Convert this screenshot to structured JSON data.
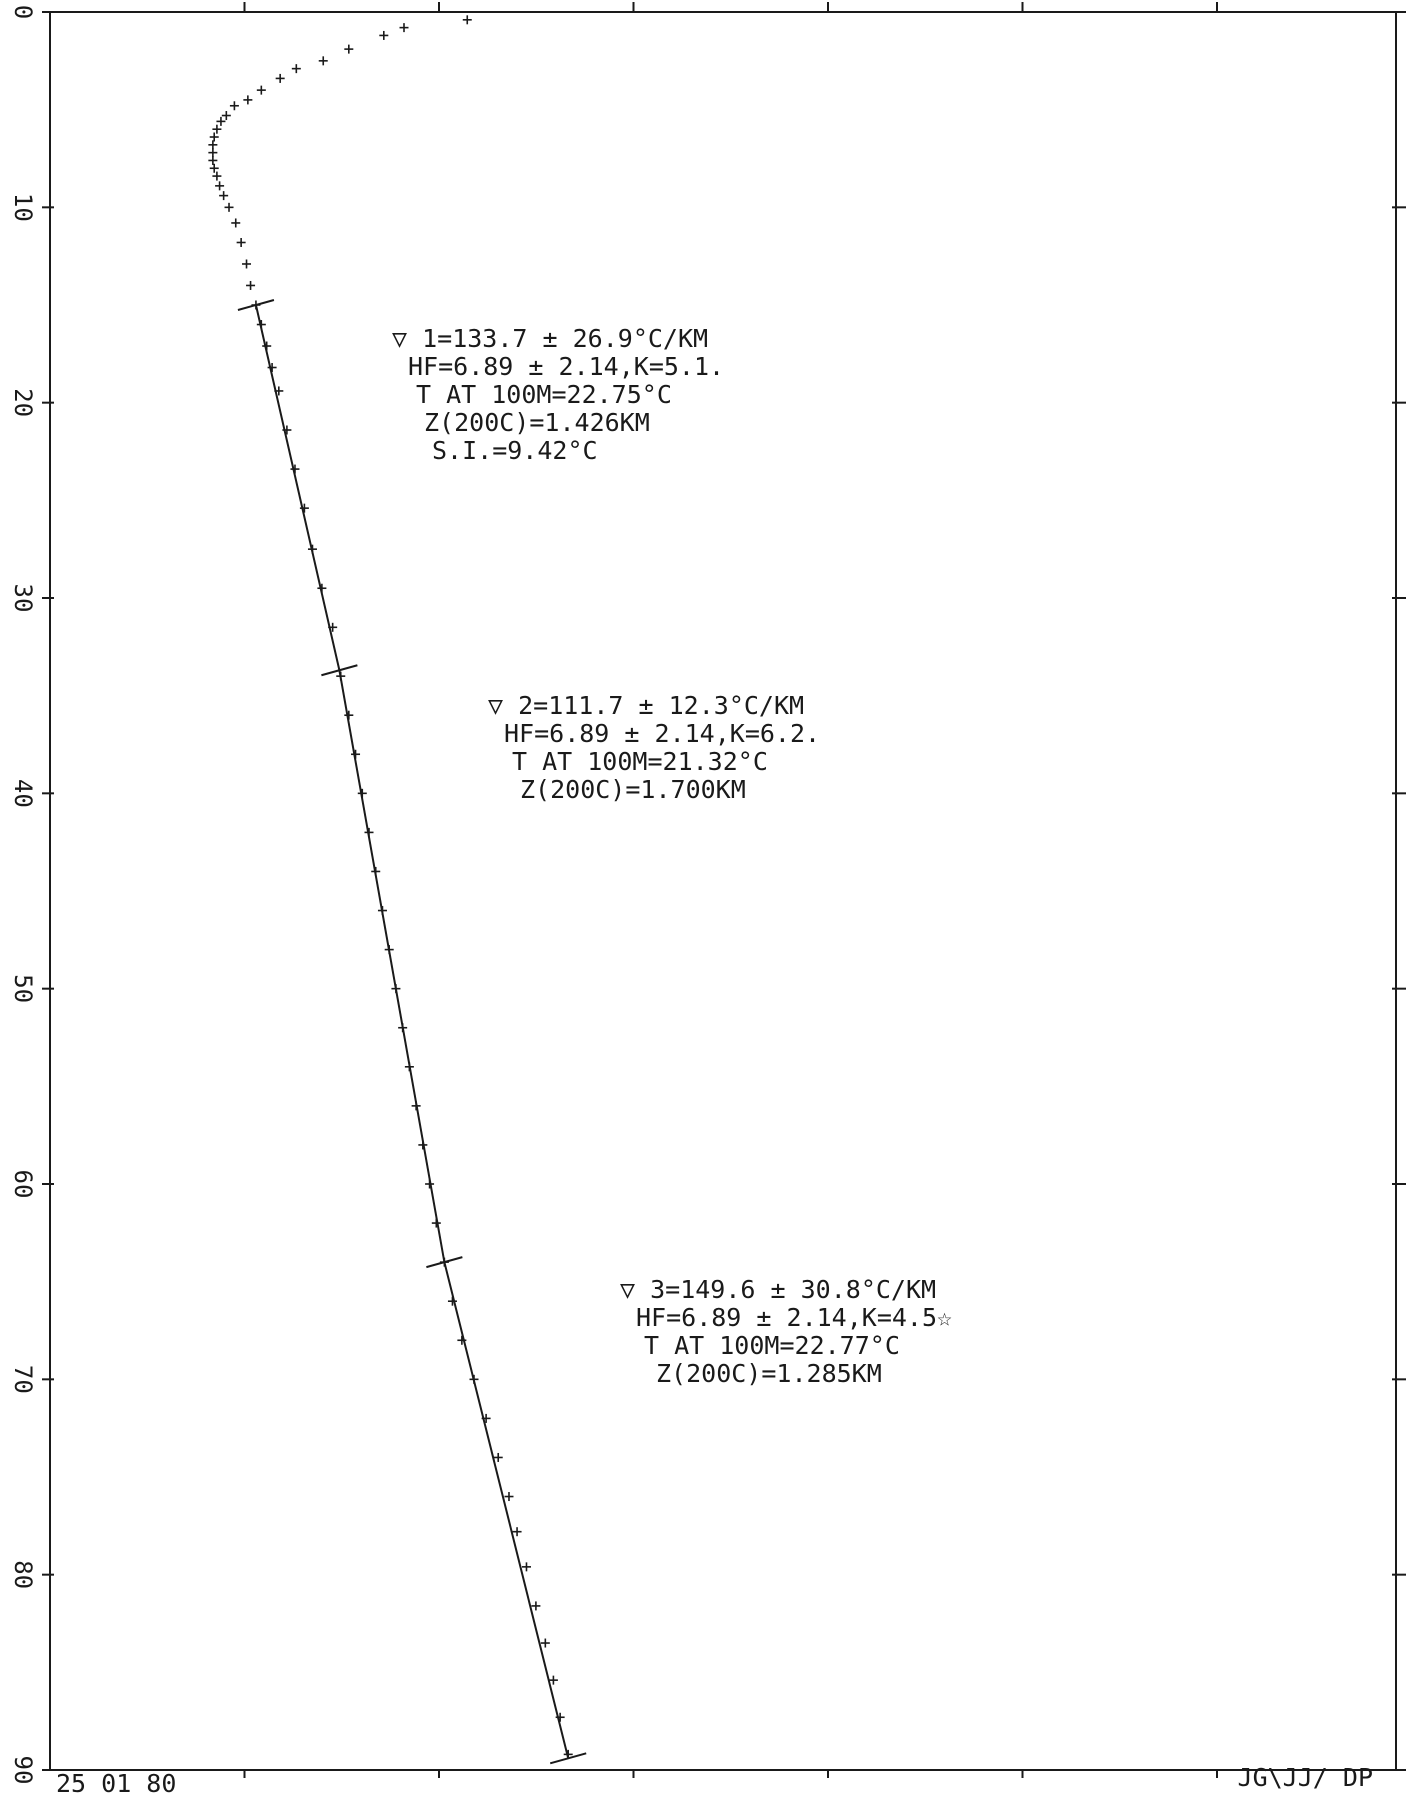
{
  "chart_data": {
    "type": "scatter",
    "title": "",
    "xlabel": "",
    "ylabel": "",
    "ylim": [
      0,
      90
    ],
    "y_ticks": [
      "0",
      "10",
      "20",
      "30",
      "40",
      "50",
      "60",
      "70",
      "80",
      "90"
    ],
    "ink_color": "#1a1a1a",
    "series": [
      {
        "points": [
          {
            "x": 31.0,
            "y": 0.4
          },
          {
            "x": 26.3,
            "y": 0.8
          },
          {
            "x": 24.8,
            "y": 1.2
          },
          {
            "x": 22.2,
            "y": 1.9
          },
          {
            "x": 20.3,
            "y": 2.5
          },
          {
            "x": 18.3,
            "y": 2.9
          },
          {
            "x": 17.1,
            "y": 3.4
          },
          {
            "x": 15.7,
            "y": 4.0
          },
          {
            "x": 14.7,
            "y": 4.5
          },
          {
            "x": 13.7,
            "y": 4.8
          },
          {
            "x": 13.1,
            "y": 5.3
          },
          {
            "x": 12.7,
            "y": 5.6
          },
          {
            "x": 12.4,
            "y": 6.0
          },
          {
            "x": 12.2,
            "y": 6.4
          },
          {
            "x": 12.1,
            "y": 6.8
          },
          {
            "x": 12.1,
            "y": 7.2
          },
          {
            "x": 12.1,
            "y": 7.6
          },
          {
            "x": 12.2,
            "y": 8.0
          },
          {
            "x": 12.4,
            "y": 8.4
          },
          {
            "x": 12.6,
            "y": 8.9
          },
          {
            "x": 12.9,
            "y": 9.4
          },
          {
            "x": 13.3,
            "y": 10.0
          },
          {
            "x": 13.8,
            "y": 10.8
          },
          {
            "x": 14.2,
            "y": 11.8
          },
          {
            "x": 14.6,
            "y": 12.9
          },
          {
            "x": 14.9,
            "y": 14.0
          },
          {
            "x": 15.3,
            "y": 15.0
          },
          {
            "x": 15.7,
            "y": 16.0
          },
          {
            "x": 16.1,
            "y": 17.1
          },
          {
            "x": 16.5,
            "y": 18.2
          },
          {
            "x": 17.0,
            "y": 19.4
          },
          {
            "x": 17.6,
            "y": 21.4
          },
          {
            "x": 18.2,
            "y": 23.4
          },
          {
            "x": 18.9,
            "y": 25.4
          },
          {
            "x": 19.5,
            "y": 27.5
          },
          {
            "x": 20.2,
            "y": 29.5
          },
          {
            "x": 21.0,
            "y": 31.5
          },
          {
            "x": 21.6,
            "y": 34.0
          },
          {
            "x": 22.2,
            "y": 36.0
          },
          {
            "x": 22.7,
            "y": 38.0
          },
          {
            "x": 23.2,
            "y": 40.0
          },
          {
            "x": 23.7,
            "y": 42.0
          },
          {
            "x": 24.2,
            "y": 44.0
          },
          {
            "x": 24.7,
            "y": 46.0
          },
          {
            "x": 25.2,
            "y": 48.0
          },
          {
            "x": 25.7,
            "y": 50.0
          },
          {
            "x": 26.2,
            "y": 52.0
          },
          {
            "x": 26.7,
            "y": 54.0
          },
          {
            "x": 27.2,
            "y": 56.0
          },
          {
            "x": 27.7,
            "y": 58.0
          },
          {
            "x": 28.2,
            "y": 60.0
          },
          {
            "x": 28.7,
            "y": 62.0
          },
          {
            "x": 29.3,
            "y": 64.0
          },
          {
            "x": 29.9,
            "y": 66.0
          },
          {
            "x": 30.6,
            "y": 68.0
          },
          {
            "x": 31.5,
            "y": 70.0
          },
          {
            "x": 32.4,
            "y": 72.0
          },
          {
            "x": 33.3,
            "y": 74.0
          },
          {
            "x": 34.1,
            "y": 76.0
          },
          {
            "x": 34.7,
            "y": 77.8
          },
          {
            "x": 35.4,
            "y": 79.6
          },
          {
            "x": 36.1,
            "y": 81.6
          },
          {
            "x": 36.8,
            "y": 83.5
          },
          {
            "x": 37.4,
            "y": 85.4
          },
          {
            "x": 37.9,
            "y": 87.3
          },
          {
            "x": 38.5,
            "y": 89.2
          }
        ]
      }
    ],
    "fit_segments": [
      {
        "x1": 15.3,
        "y1": 15.0,
        "x2": 21.5,
        "y2": 33.7
      },
      {
        "x1": 21.5,
        "y1": 33.7,
        "x2": 29.3,
        "y2": 64.0
      },
      {
        "x1": 29.3,
        "y1": 64.0,
        "x2": 38.5,
        "y2": 89.4
      }
    ],
    "break_marks": [
      {
        "x": 15.3,
        "y": 15.0
      },
      {
        "x": 21.5,
        "y": 33.7
      },
      {
        "x": 29.3,
        "y": 64.0
      },
      {
        "x": 38.5,
        "y": 89.4
      }
    ],
    "annotations": [
      {
        "lines": [
          "▽ 1=133.7 ± 26.9°C/KM",
          "HF=6.89 ± 2.14,K=5.1.",
          "T AT 100M=22.75°C",
          "Z(200C)=1.426KM",
          "S.I.=9.42°C"
        ]
      },
      {
        "lines": [
          "▽ 2=111.7 ± 12.3°C/KM",
          "HF=6.89 ± 2.14,K=6.2.",
          "T AT 100M=21.32°C",
          "Z(200C)=1.700KM"
        ]
      },
      {
        "lines": [
          "▽ 3=149.6 ± 30.8°C/KM",
          "HF=6.89 ± 2.14,K=4.5☆",
          "T AT 100M=22.77°C",
          "Z(200C)=1.285KM"
        ]
      }
    ]
  },
  "footer": {
    "date": "25 01 80",
    "initials": "JG\\JJ/ DP"
  }
}
